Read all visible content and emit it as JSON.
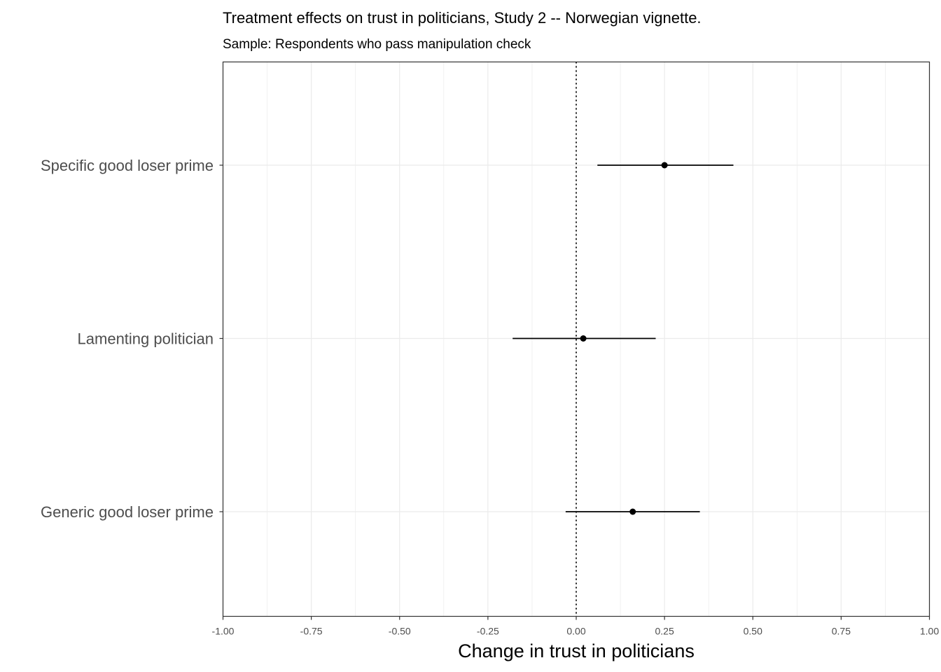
{
  "chart_data": {
    "type": "scatter",
    "title": "Treatment effects on trust in politicians, Study 2 -- Norwegian vignette.",
    "subtitle": "Sample: Respondents who pass manipulation check",
    "xlabel": "Change in trust in politicians",
    "ylabel": "",
    "xlim": [
      -1.0,
      1.0
    ],
    "xticks": [
      -1.0,
      -0.75,
      -0.5,
      -0.25,
      0.0,
      0.25,
      0.5,
      0.75,
      1.0
    ],
    "xtick_labels": [
      "-1.00",
      "-0.75",
      "-0.50",
      "-0.25",
      "0.00",
      "0.25",
      "0.50",
      "0.75",
      "1.00"
    ],
    "categories": [
      "Specific good loser prime",
      "Lamenting politician",
      "Generic good loser prime"
    ],
    "estimates": [
      0.25,
      0.02,
      0.16
    ],
    "ci_low": [
      0.06,
      -0.18,
      -0.03
    ],
    "ci_high": [
      0.445,
      0.225,
      0.35
    ],
    "reference_line": 0.0,
    "grid": true,
    "legend": "none",
    "colors": {
      "point": "#000000",
      "grid": "#ebebeb",
      "reference": "#000000",
      "panel_border": "#333333"
    }
  }
}
